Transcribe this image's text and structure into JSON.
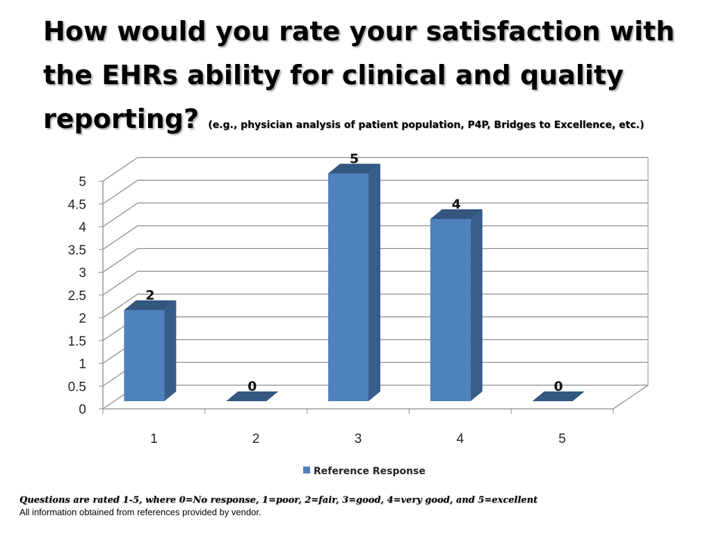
{
  "slide": {
    "title": "How would you rate your satisfaction with the EHRs ability for clinical and quality reporting?",
    "subtitle": "(e.g., physician analysis of patient population, P4P, Bridges to Excellence, etc.)",
    "footnote": "Questions are rated 1-5, where 0=No response, 1=poor, 2=fair, 3=good, 4=very good, and 5=excellent",
    "source": "All information obtained from references provided by vendor."
  },
  "chart_data": {
    "type": "bar",
    "categories": [
      "1",
      "2",
      "3",
      "4",
      "5"
    ],
    "series": [
      {
        "name": "Reference Response",
        "values": [
          2,
          0,
          5,
          4,
          0
        ],
        "color": "#4f81bd"
      }
    ],
    "ylim": [
      0,
      5
    ],
    "yticks": [
      "0",
      "0.5",
      "1",
      "1.5",
      "2",
      "2.5",
      "3",
      "3.5",
      "4",
      "4.5",
      "5"
    ],
    "data_labels": [
      "2",
      "0",
      "5",
      "4",
      "0"
    ],
    "grid": true,
    "legend_position": "bottom",
    "style": "3d-column"
  }
}
